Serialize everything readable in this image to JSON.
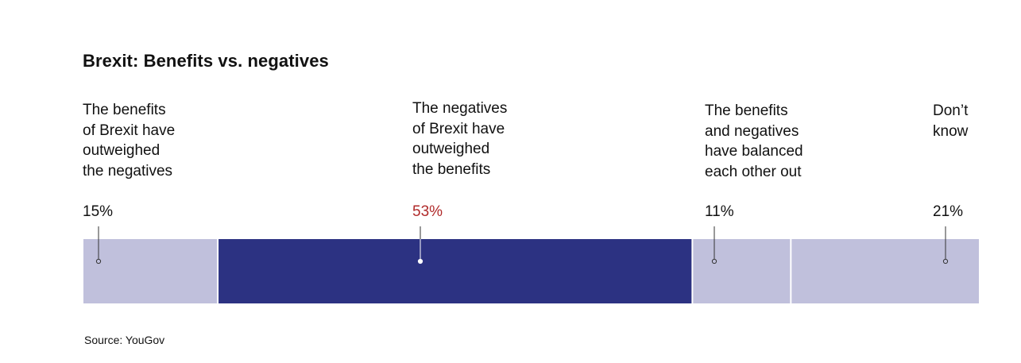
{
  "chart_data": {
    "type": "bar",
    "title": "Brexit: Benefits vs. negatives",
    "orientation": "horizontal-stacked",
    "categories": [
      "The benefits\nof Brexit have\noutweighed\nthe negatives",
      "The negatives\nof Brexit have\noutweighed\nthe benefits",
      "The benefits\nand negatives\nhave balanced\neach other out",
      "Don’t\nknow"
    ],
    "values": [
      15,
      53,
      11,
      21
    ],
    "value_labels": [
      "15%",
      "53%",
      "11%",
      "21%"
    ],
    "unit": "%",
    "highlight_index": 1,
    "colors": {
      "segment": "#c0c0dc",
      "highlight_segment": "#2c3282",
      "highlight_text": "#b02a2a",
      "separator": "#ffffff",
      "leader": "#333333"
    },
    "source": "Source: YouGov"
  }
}
